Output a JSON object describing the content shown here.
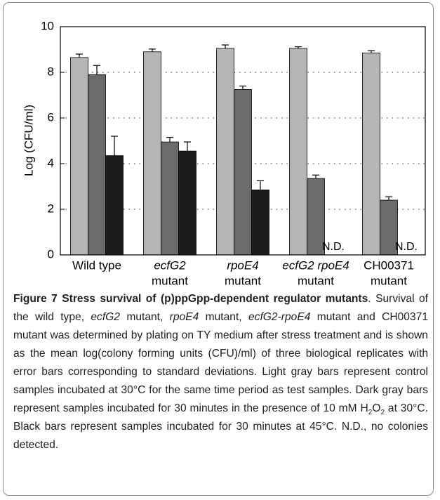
{
  "chart_data": {
    "type": "bar",
    "ylabel": "Log (CFU/ml)",
    "categories": [
      [
        "Wild type"
      ],
      [
        "ecfG2",
        "mutant"
      ],
      [
        "rpoE4",
        "mutant"
      ],
      [
        "ecfG2 rpoE4",
        "mutant"
      ],
      [
        "CH00371",
        "mutant"
      ]
    ],
    "series": [
      {
        "color": "#b5b5b5",
        "values": [
          8.65,
          8.9,
          9.05,
          9.05,
          8.85
        ],
        "errors": [
          0.15,
          0.12,
          0.15,
          0.07,
          0.1
        ]
      },
      {
        "color": "#6b6b6b",
        "values": [
          7.9,
          4.95,
          7.25,
          3.35,
          2.4
        ],
        "errors": [
          0.4,
          0.2,
          0.15,
          0.15,
          0.15
        ]
      },
      {
        "color": "#1c1c1c",
        "values": [
          4.35,
          4.55,
          2.85,
          null,
          null
        ],
        "errors": [
          0.85,
          0.4,
          0.4,
          null,
          null
        ],
        "value_labels": [
          null,
          null,
          null,
          "N.D.",
          "N.D."
        ]
      }
    ],
    "ylim": [
      0,
      10
    ],
    "yticks": [
      0,
      2,
      4,
      6,
      8,
      10
    ],
    "grid": true
  },
  "caption": {
    "title": "Figure 7 Stress survival of (p)ppGpp-dependent regulator mutants",
    "body": [
      ". Survival of the wild type, ",
      "ecfG2",
      " mutant, ",
      "rpoE4",
      " mutant, ",
      "ecfG2-rpoE4",
      " mutant and CH00371 mutant was determined by plating on TY medium after stress treatment and is shown as the mean log(colony forming units (CFU)/ml) of three biological replicates with error bars corresponding to standard deviations. Light gray bars represent control samples incubated at 30°C for the same time period as test samples. Dark gray bars represent samples incubated for 30 minutes in the presence of 10 mM H",
      "2",
      "O",
      "2",
      " at 30°C. Black bars represent samples incubated for 30 minutes at 45°C. N.D., no colonies detected."
    ]
  }
}
